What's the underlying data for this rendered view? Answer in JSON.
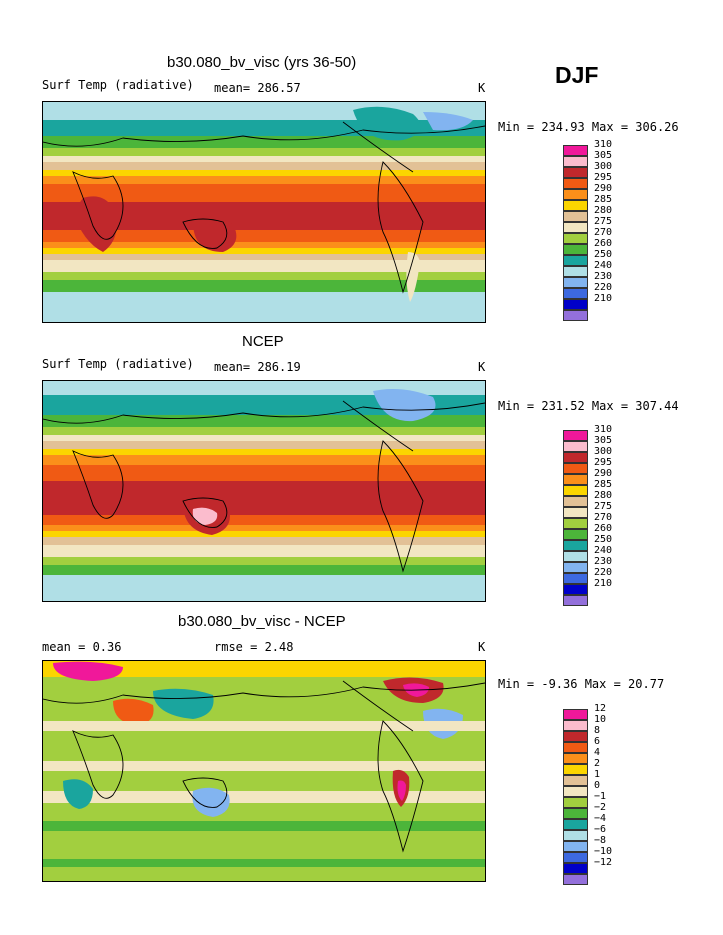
{
  "season": "DJF",
  "panels": [
    {
      "id": "model",
      "title": "b30.080_bv_visc (yrs 36-50)",
      "left_label": "Surf Temp (radiative)",
      "center_label": "mean= 286.57",
      "right_label": "K",
      "minmax": "Min = 234.93  Max = 306.26",
      "levels": [
        "310",
        "305",
        "300",
        "295",
        "290",
        "285",
        "280",
        "275",
        "270",
        "260",
        "250",
        "240",
        "230",
        "220",
        "210"
      ]
    },
    {
      "id": "ncep",
      "title": "NCEP",
      "left_label": "Surf Temp (radiative)",
      "center_label": "mean= 286.19",
      "right_label": "K",
      "minmax": "Min = 231.52  Max = 307.44",
      "levels": [
        "310",
        "305",
        "300",
        "295",
        "290",
        "285",
        "280",
        "275",
        "270",
        "260",
        "250",
        "240",
        "230",
        "220",
        "210"
      ]
    },
    {
      "id": "diff",
      "title": "b30.080_bv_visc - NCEP",
      "left_label": "mean =    0.36",
      "center_label": "rmse =    2.48",
      "right_label": "K",
      "minmax": "Min =  -9.36  Max =  20.77",
      "levels": [
        "12",
        "10",
        "8",
        "6",
        "4",
        "2",
        "1",
        "0",
        "−1",
        "−2",
        "−4",
        "−6",
        "−8",
        "−10",
        "−12"
      ]
    }
  ],
  "colorbar_colors": [
    "#f0189a",
    "#fbbccd",
    "#c0282c",
    "#f05a14",
    "#fb8f1a",
    "#fbd500",
    "#e2c196",
    "#f2e6c2",
    "#a2cf3f",
    "#4cb53a",
    "#1aa59e",
    "#b0dfe6",
    "#82b4f0",
    "#3d69e0",
    "#0000c8",
    "#9370db"
  ]
}
